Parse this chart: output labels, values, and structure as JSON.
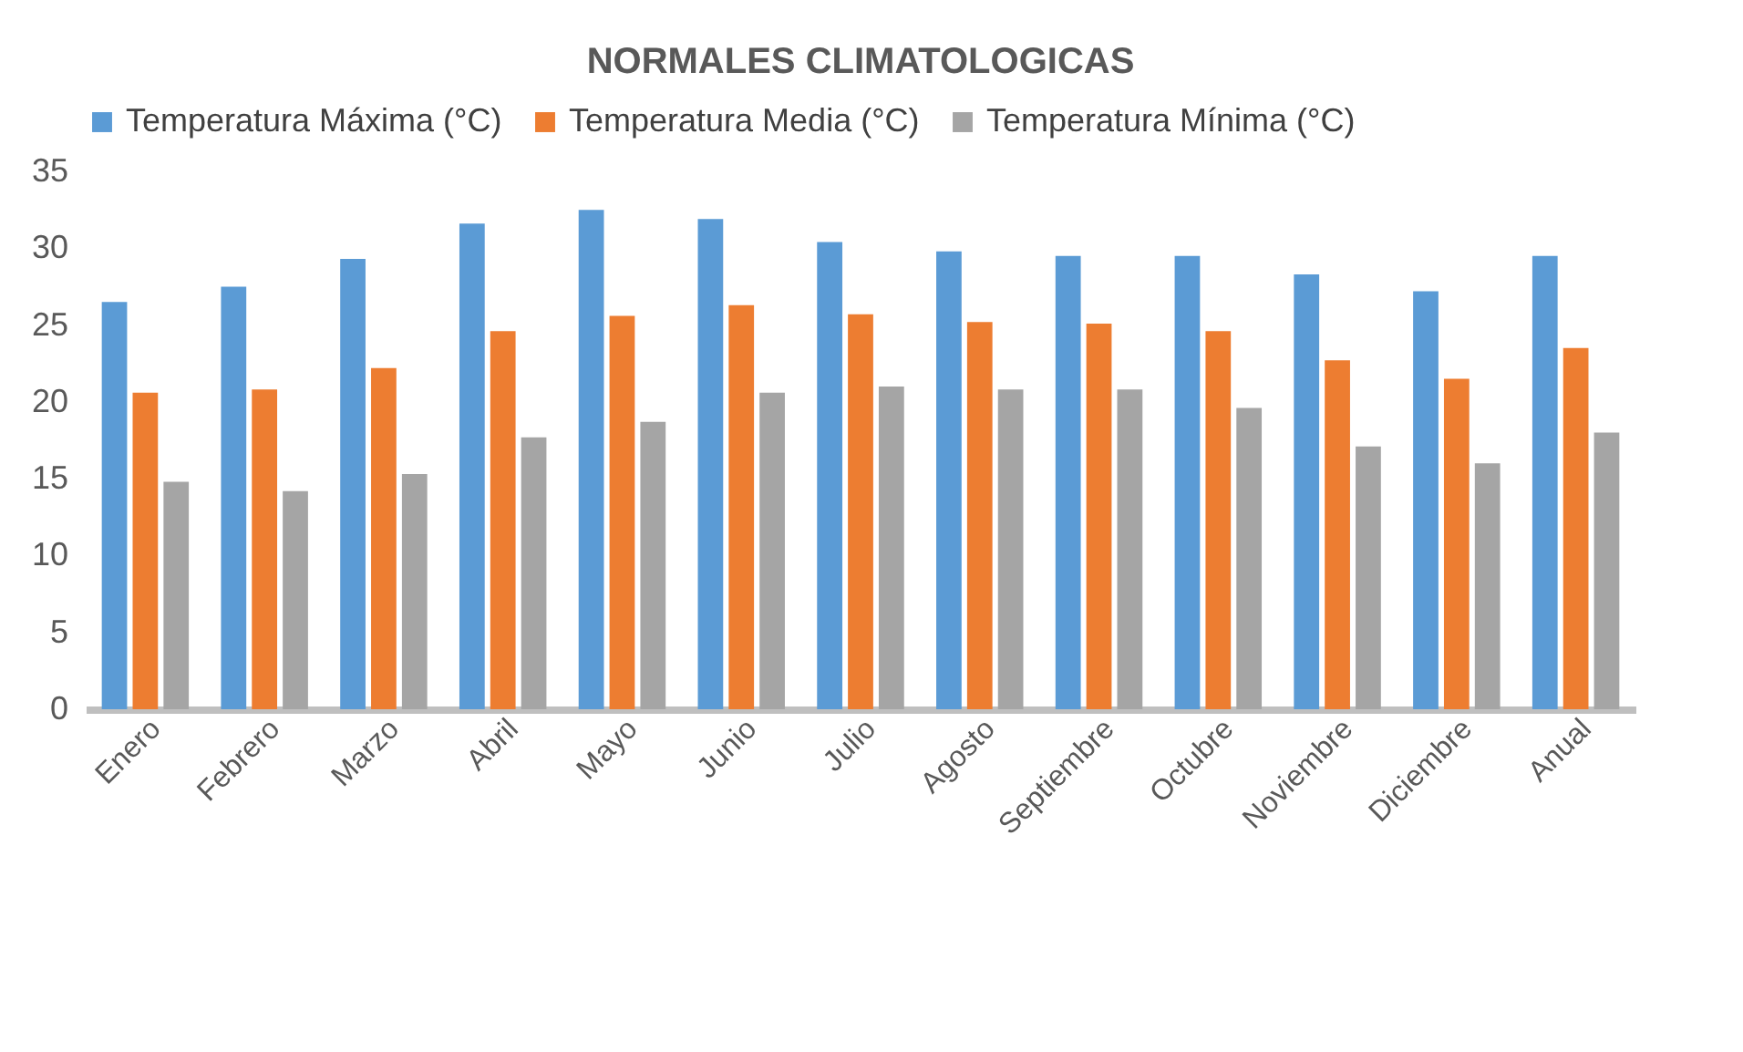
{
  "chart_data": {
    "type": "bar",
    "title": "NORMALES CLIMATOLOGICAS",
    "categories": [
      "Enero",
      "Febrero",
      "Marzo",
      "Abril",
      "Mayo",
      "Junio",
      "Julio",
      "Agosto",
      "Septiembre",
      "Octubre",
      "Noviembre",
      "Diciembre",
      "Anual"
    ],
    "series": [
      {
        "name": "Temperatura Máxima (°C)",
        "color": "#5b9bd5",
        "values": [
          26.5,
          27.5,
          29.3,
          31.6,
          32.5,
          31.9,
          30.4,
          29.8,
          29.5,
          29.5,
          28.3,
          27.2,
          29.5
        ]
      },
      {
        "name": "Temperatura Media (°C)",
        "color": "#ed7d31",
        "values": [
          20.6,
          20.8,
          22.2,
          24.6,
          25.6,
          26.3,
          25.7,
          25.2,
          25.1,
          24.6,
          22.7,
          21.5,
          23.5
        ]
      },
      {
        "name": "Temperatura Mínima (°C)",
        "color": "#a5a5a5",
        "values": [
          14.8,
          14.2,
          15.3,
          17.7,
          18.7,
          20.6,
          21.0,
          20.8,
          20.8,
          19.6,
          17.1,
          16.0,
          18.0
        ]
      }
    ],
    "ylim": [
      0,
      35
    ],
    "yticks": [
      0,
      5,
      10,
      15,
      20,
      25,
      30,
      35
    ],
    "grid": false,
    "legend": "top"
  }
}
